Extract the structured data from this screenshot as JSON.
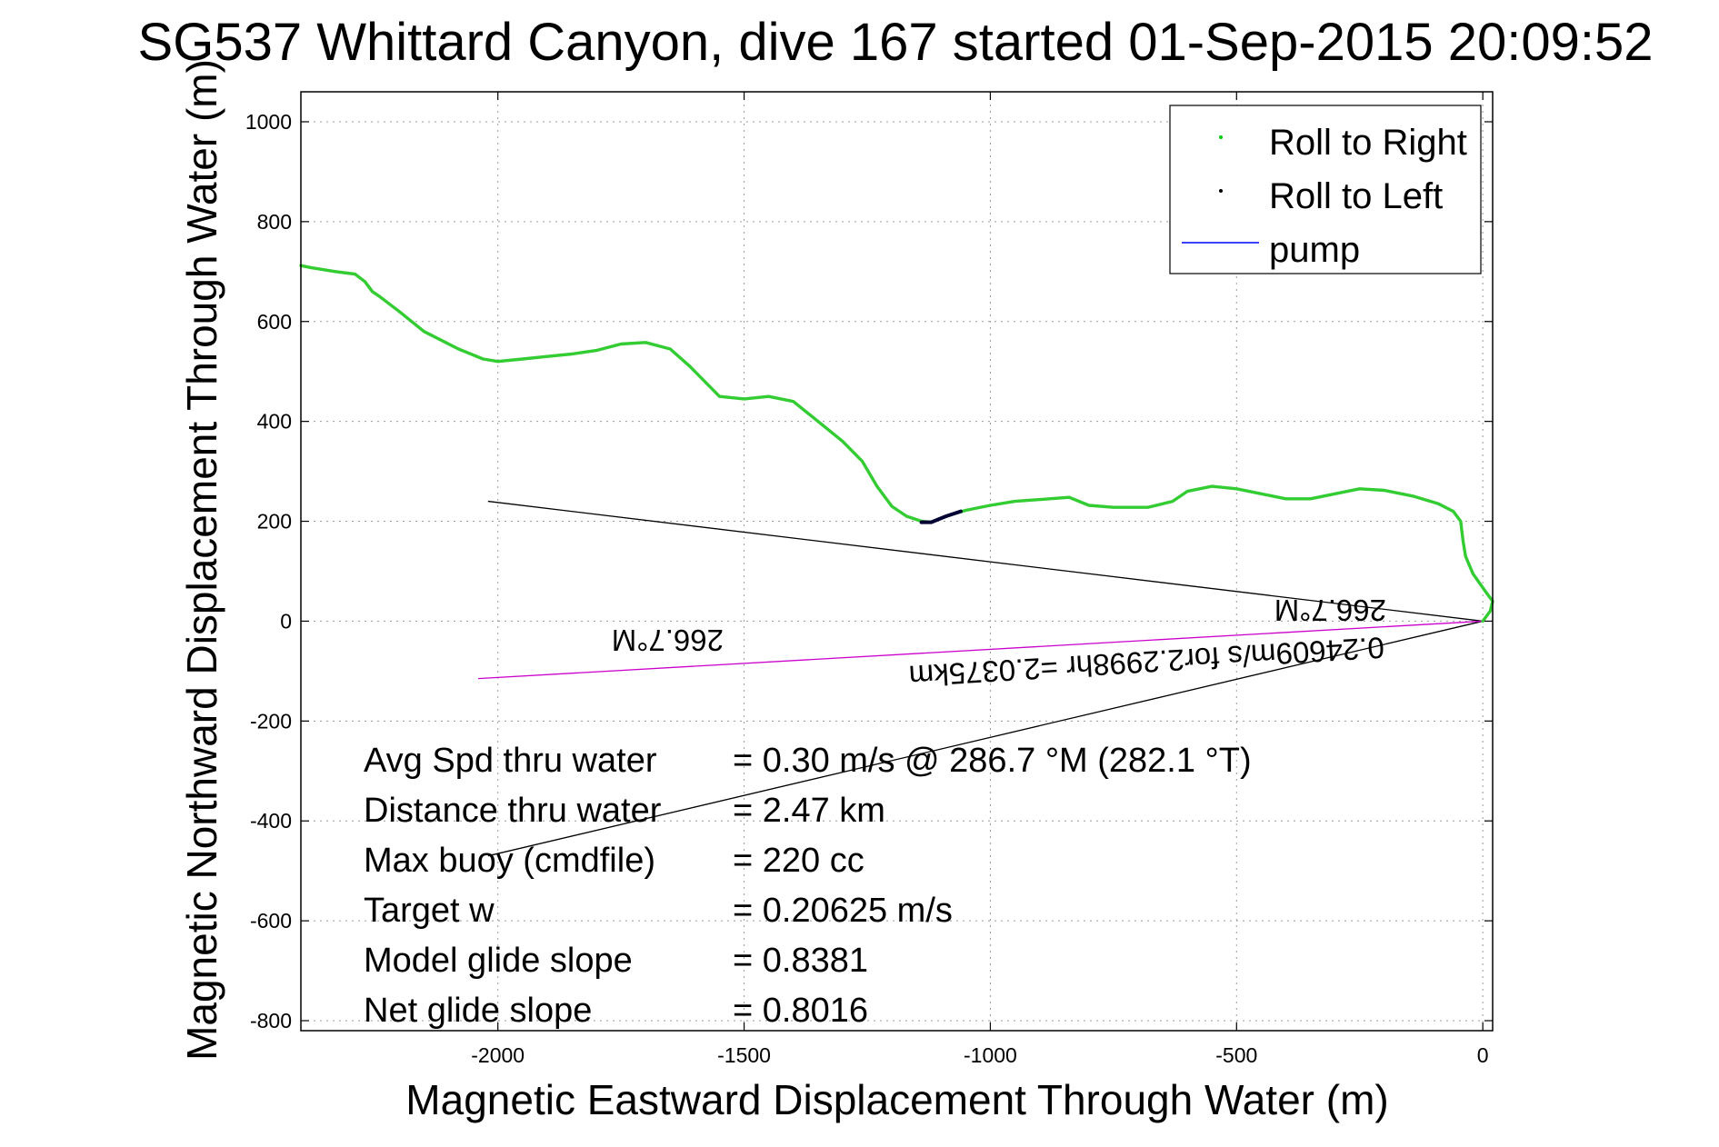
{
  "chart_data": {
    "type": "line",
    "title": "SG537 Whittard Canyon, dive 167 started 01-Sep-2015 20:09:52",
    "xlabel": "Magnetic Eastward Displacement Through Water (m)",
    "ylabel": "Magnetic Northward Displacement Through Water (m)",
    "xlim": [
      -2400,
      20
    ],
    "ylim": [
      -820,
      1060
    ],
    "xticks": [
      -2000,
      -1500,
      -1000,
      -500,
      0
    ],
    "yticks": [
      -800,
      -600,
      -400,
      -200,
      0,
      200,
      400,
      600,
      800,
      1000
    ],
    "grid": true,
    "legend": {
      "position": "top-right",
      "entries": [
        {
          "label": "Roll to Right",
          "marker": "dot",
          "color": "#00cc00"
        },
        {
          "label": "Roll to Left",
          "marker": "dot",
          "color": "#000000"
        },
        {
          "label": "pump",
          "marker": "line",
          "color": "#0000ff"
        }
      ]
    },
    "series": [
      {
        "name": "Roll to Right",
        "color": "#33cc33",
        "points": [
          [
            0,
            0
          ],
          [
            15,
            20
          ],
          [
            20,
            40
          ],
          [
            5,
            60
          ],
          [
            -20,
            95
          ],
          [
            -35,
            130
          ],
          [
            -40,
            160
          ],
          [
            -45,
            200
          ],
          [
            -60,
            220
          ],
          [
            -90,
            235
          ],
          [
            -140,
            250
          ],
          [
            -200,
            262
          ],
          [
            -250,
            265
          ],
          [
            -300,
            255
          ],
          [
            -350,
            245
          ],
          [
            -400,
            245
          ],
          [
            -450,
            255
          ],
          [
            -500,
            265
          ],
          [
            -550,
            270
          ],
          [
            -600,
            260
          ],
          [
            -630,
            240
          ],
          [
            -680,
            228
          ],
          [
            -750,
            228
          ],
          [
            -800,
            232
          ],
          [
            -840,
            248
          ],
          [
            -880,
            245
          ],
          [
            -950,
            240
          ],
          [
            -1000,
            232
          ],
          [
            -1050,
            222
          ],
          [
            -1090,
            210
          ],
          [
            -1120,
            198
          ],
          [
            -1140,
            200
          ],
          [
            -1170,
            210
          ],
          [
            -1200,
            230
          ],
          [
            -1230,
            270
          ],
          [
            -1260,
            320
          ],
          [
            -1300,
            360
          ],
          [
            -1350,
            400
          ],
          [
            -1400,
            440
          ],
          [
            -1450,
            450
          ],
          [
            -1500,
            445
          ],
          [
            -1550,
            450
          ],
          [
            -1580,
            480
          ],
          [
            -1610,
            510
          ],
          [
            -1650,
            545
          ],
          [
            -1700,
            558
          ],
          [
            -1750,
            555
          ],
          [
            -1800,
            542
          ],
          [
            -1850,
            535
          ],
          [
            -1900,
            530
          ],
          [
            -1950,
            525
          ],
          [
            -2000,
            520
          ],
          [
            -2030,
            525
          ],
          [
            -2080,
            545
          ],
          [
            -2150,
            580
          ],
          [
            -2200,
            620
          ],
          [
            -2240,
            650
          ],
          [
            -2255,
            660
          ],
          [
            -2270,
            680
          ],
          [
            -2290,
            695
          ],
          [
            -2330,
            700
          ],
          [
            -2380,
            708
          ],
          [
            -2400,
            712
          ]
        ]
      },
      {
        "name": "Roll to Left",
        "color": "#000033",
        "points": [
          [
            -1060,
            220
          ],
          [
            -1090,
            210
          ],
          [
            -1120,
            198
          ],
          [
            -1140,
            198
          ]
        ]
      }
    ],
    "arrows": [
      {
        "from": [
          0,
          0
        ],
        "to": [
          -2020,
          240
        ],
        "color": "#000000"
      },
      {
        "from": [
          0,
          0
        ],
        "to": [
          -2020,
          -470
        ],
        "color": "#000000"
      },
      {
        "from": [
          0,
          0
        ],
        "to": [
          -2040,
          -115
        ],
        "color": "#cc00cc"
      }
    ],
    "annotations": {
      "heading_small": "266.7°M",
      "heading_large": "266.7°M",
      "velocity_text": "0.24609m/s for2.2998hr =2.0375km"
    },
    "stats": [
      {
        "label": "Avg Spd thru water",
        "value": "=  0.30 m/s @ 286.7 °M (282.1 °T)"
      },
      {
        "label": "Distance thru water",
        "value": "=  2.47 km"
      },
      {
        "label": "Max buoy (cmdfile)",
        "value": "= 220 cc"
      },
      {
        "label": "Target w",
        "value": "= 0.20625 m/s"
      },
      {
        "label": "Model glide slope",
        "value": "= 0.8381"
      },
      {
        "label": "Net glide slope",
        "value": "= 0.8016"
      }
    ]
  }
}
